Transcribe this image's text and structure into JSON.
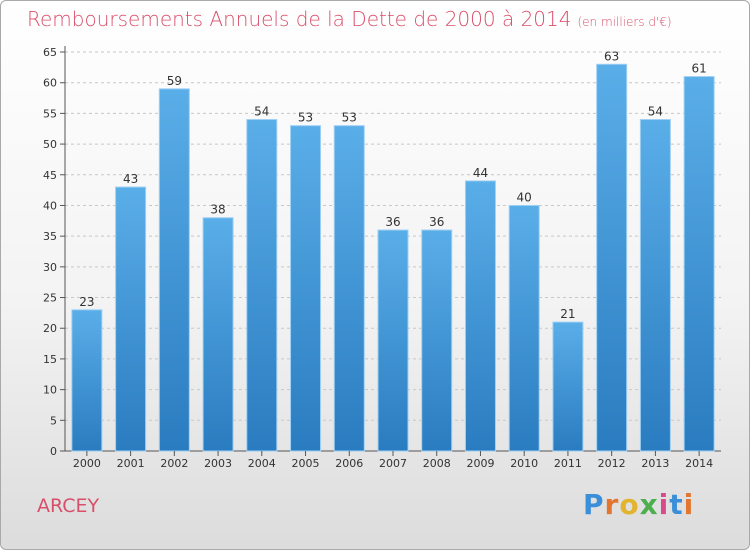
{
  "header": {
    "title": "Remboursements Annuels de la Dette de 2000 à 2014",
    "subtitle": "(en milliers d'€)"
  },
  "footer": {
    "commune": "ARCEY",
    "brand": "Proxiti"
  },
  "colors": {
    "bar_light": "#5aaee8",
    "bar_dark": "#2a7cc0",
    "title": "#d94f6a"
  },
  "chart_data": {
    "type": "bar",
    "title": "Remboursements Annuels de la Dette de 2000 à 2014",
    "subtitle": "(en milliers d'€)",
    "categories": [
      "2000",
      "2001",
      "2002",
      "2003",
      "2004",
      "2005",
      "2006",
      "2007",
      "2008",
      "2009",
      "2010",
      "2011",
      "2012",
      "2013",
      "2014"
    ],
    "values": [
      23,
      43,
      59,
      38,
      54,
      53,
      53,
      36,
      36,
      44,
      40,
      21,
      63,
      54,
      61
    ],
    "ylim": [
      0,
      65
    ],
    "yticks": [
      0,
      5,
      10,
      15,
      20,
      25,
      30,
      35,
      40,
      45,
      50,
      55,
      60,
      65
    ],
    "grid": "horizontal-dashed",
    "xlabel": "",
    "ylabel": ""
  }
}
